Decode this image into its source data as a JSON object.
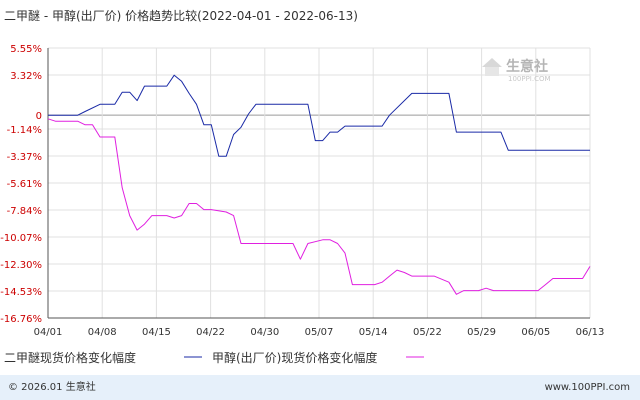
{
  "chart_data": {
    "type": "line",
    "title": "二甲醚 - 甲醇(出厂价) 价格趋势比较(2022-04-01 - 2022-06-13)",
    "y_ticks": [
      "5.55%",
      "3.32%",
      "0",
      "-1.14%",
      "-3.37%",
      "-5.61%",
      "-7.84%",
      "-10.07%",
      "-12.30%",
      "-14.53%",
      "-16.76%"
    ],
    "ylim": [
      -16.76,
      5.55
    ],
    "x_ticks": [
      "04/01",
      "04/08",
      "04/15",
      "04/22",
      "04/30",
      "05/07",
      "05/14",
      "05/22",
      "05/29",
      "06/05",
      "06/13"
    ],
    "xlim": [
      "2022-04-01",
      "2022-06-13"
    ],
    "grid": true,
    "legend_position": "bottom",
    "series": [
      {
        "name": "二甲醚现货价格变化幅度",
        "color": "#1a2aa6",
        "points": [
          [
            "2022-04-01",
            0
          ],
          [
            "2022-04-02",
            0
          ],
          [
            "2022-04-05",
            0
          ],
          [
            "2022-04-06",
            0.3
          ],
          [
            "2022-04-08",
            0.9
          ],
          [
            "2022-04-09",
            0.9
          ],
          [
            "2022-04-10",
            0.9
          ],
          [
            "2022-04-11",
            1.9
          ],
          [
            "2022-04-12",
            1.9
          ],
          [
            "2022-04-13",
            1.2
          ],
          [
            "2022-04-14",
            2.4
          ],
          [
            "2022-04-15",
            2.4
          ],
          [
            "2022-04-17",
            2.4
          ],
          [
            "2022-04-18",
            3.3
          ],
          [
            "2022-04-19",
            2.8
          ],
          [
            "2022-04-20",
            1.8
          ],
          [
            "2022-04-21",
            0.9
          ],
          [
            "2022-04-22",
            -0.8
          ],
          [
            "2022-04-23",
            -0.8
          ],
          [
            "2022-04-24",
            -3.4
          ],
          [
            "2022-04-25",
            -3.4
          ],
          [
            "2022-04-26",
            -1.6
          ],
          [
            "2022-04-27",
            -1.0
          ],
          [
            "2022-04-28",
            0.1
          ],
          [
            "2022-04-29",
            0.9
          ],
          [
            "2022-05-06",
            0.9
          ],
          [
            "2022-05-07",
            -2.1
          ],
          [
            "2022-05-08",
            -2.1
          ],
          [
            "2022-05-09",
            -1.4
          ],
          [
            "2022-05-10",
            -1.4
          ],
          [
            "2022-05-11",
            -0.9
          ],
          [
            "2022-05-16",
            -0.9
          ],
          [
            "2022-05-17",
            0
          ],
          [
            "2022-05-20",
            1.8
          ],
          [
            "2022-05-25",
            1.8
          ],
          [
            "2022-05-26",
            -1.4
          ],
          [
            "2022-06-01",
            -1.4
          ],
          [
            "2022-06-02",
            -2.9
          ],
          [
            "2022-06-13",
            -2.9
          ]
        ]
      },
      {
        "name": "甲醇(出厂价)现货价格变化幅度",
        "color": "#e020e0",
        "points": [
          [
            "2022-04-01",
            -0.3
          ],
          [
            "2022-04-02",
            -0.5
          ],
          [
            "2022-04-05",
            -0.5
          ],
          [
            "2022-04-06",
            -0.8
          ],
          [
            "2022-04-07",
            -0.8
          ],
          [
            "2022-04-08",
            -1.8
          ],
          [
            "2022-04-09",
            -1.8
          ],
          [
            "2022-04-10",
            -1.8
          ],
          [
            "2022-04-11",
            -6.0
          ],
          [
            "2022-04-12",
            -8.3
          ],
          [
            "2022-04-13",
            -9.5
          ],
          [
            "2022-04-14",
            -9.0
          ],
          [
            "2022-04-15",
            -8.3
          ],
          [
            "2022-04-16",
            -8.3
          ],
          [
            "2022-04-17",
            -8.3
          ],
          [
            "2022-04-18",
            -8.5
          ],
          [
            "2022-04-19",
            -8.3
          ],
          [
            "2022-04-20",
            -7.3
          ],
          [
            "2022-04-21",
            -7.3
          ],
          [
            "2022-04-22",
            -7.8
          ],
          [
            "2022-04-23",
            -7.8
          ],
          [
            "2022-04-25",
            -8.0
          ],
          [
            "2022-04-26",
            -8.3
          ],
          [
            "2022-04-27",
            -10.6
          ],
          [
            "2022-05-04",
            -10.6
          ],
          [
            "2022-05-05",
            -11.9
          ],
          [
            "2022-05-06",
            -10.6
          ],
          [
            "2022-05-08",
            -10.3
          ],
          [
            "2022-05-09",
            -10.3
          ],
          [
            "2022-05-10",
            -10.6
          ],
          [
            "2022-05-11",
            -11.4
          ],
          [
            "2022-05-12",
            -14.0
          ],
          [
            "2022-05-15",
            -14.0
          ],
          [
            "2022-05-16",
            -13.8
          ],
          [
            "2022-05-17",
            -13.3
          ],
          [
            "2022-05-18",
            -12.8
          ],
          [
            "2022-05-19",
            -13.0
          ],
          [
            "2022-05-20",
            -13.3
          ],
          [
            "2022-05-23",
            -13.3
          ],
          [
            "2022-05-25",
            -13.8
          ],
          [
            "2022-05-26",
            -14.8
          ],
          [
            "2022-05-27",
            -14.5
          ],
          [
            "2022-05-29",
            -14.5
          ],
          [
            "2022-05-30",
            -14.3
          ],
          [
            "2022-05-31",
            -14.5
          ],
          [
            "2022-06-06",
            -14.5
          ],
          [
            "2022-06-07",
            -14.0
          ],
          [
            "2022-06-08",
            -13.5
          ],
          [
            "2022-06-12",
            -13.5
          ],
          [
            "2022-06-13",
            -12.5
          ]
        ]
      }
    ]
  },
  "watermark": {
    "brand": "生意社",
    "domain": "100PPI.COM"
  },
  "footer": {
    "copyright": "© 2026.01 生意社",
    "site": "www.100PPI.com"
  }
}
